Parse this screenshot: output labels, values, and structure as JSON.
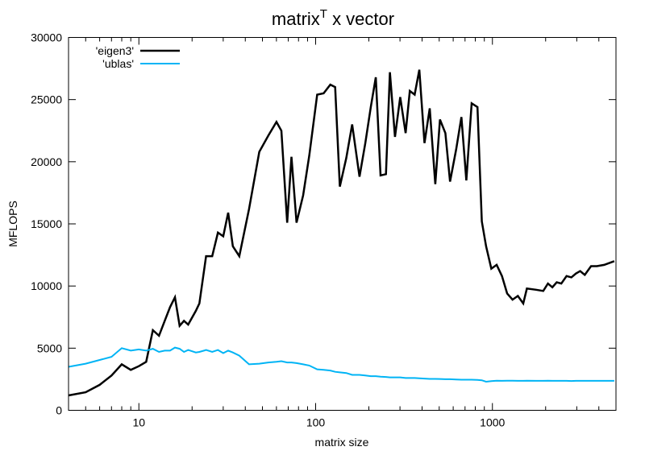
{
  "chart_data": {
    "type": "line",
    "title": "matrix",
    "title_superscript": "T",
    "title_suffix": " x vector",
    "xlabel": "matrix size",
    "ylabel": "MFLOPS",
    "x_scale": "log",
    "xlim": [
      4,
      5000
    ],
    "ylim": [
      0,
      30000
    ],
    "x_ticks": [
      10,
      100,
      1000
    ],
    "x_tick_labels": [
      "10",
      "100",
      "1000"
    ],
    "y_ticks": [
      0,
      5000,
      10000,
      15000,
      20000,
      25000,
      30000
    ],
    "y_tick_labels": [
      "0",
      "5000",
      "10000",
      "15000",
      "20000",
      "25000",
      "30000"
    ],
    "grid": false,
    "legend_position": "top-left",
    "series": [
      {
        "name": "'eigen3'",
        "color": "#000000",
        "points": [
          [
            4,
            1200
          ],
          [
            5,
            1450
          ],
          [
            6,
            2050
          ],
          [
            7,
            2800
          ],
          [
            8,
            3700
          ],
          [
            9,
            3250
          ],
          [
            10,
            3550
          ],
          [
            11,
            3900
          ],
          [
            12,
            6450
          ],
          [
            13,
            6000
          ],
          [
            14,
            7200
          ],
          [
            15,
            8300
          ],
          [
            16,
            9100
          ],
          [
            17,
            6800
          ],
          [
            18,
            7200
          ],
          [
            19,
            6900
          ],
          [
            21,
            8000
          ],
          [
            22,
            8600
          ],
          [
            24,
            12400
          ],
          [
            26,
            12400
          ],
          [
            28,
            14300
          ],
          [
            30,
            14000
          ],
          [
            32,
            15900
          ],
          [
            34,
            13200
          ],
          [
            37,
            12400
          ],
          [
            42,
            16200
          ],
          [
            48,
            20800
          ],
          [
            54,
            22100
          ],
          [
            60,
            23200
          ],
          [
            64,
            22500
          ],
          [
            69,
            15100
          ],
          [
            73,
            20400
          ],
          [
            78,
            15100
          ],
          [
            85,
            17300
          ],
          [
            92,
            20500
          ],
          [
            102,
            25400
          ],
          [
            111,
            25500
          ],
          [
            121,
            26200
          ],
          [
            129,
            26000
          ],
          [
            137,
            18000
          ],
          [
            149,
            20300
          ],
          [
            161,
            23000
          ],
          [
            177,
            18800
          ],
          [
            191,
            21500
          ],
          [
            205,
            24400
          ],
          [
            219,
            26800
          ],
          [
            233,
            18900
          ],
          [
            250,
            19000
          ],
          [
            263,
            27200
          ],
          [
            281,
            22000
          ],
          [
            301,
            25200
          ],
          [
            323,
            22300
          ],
          [
            341,
            25700
          ],
          [
            363,
            25400
          ],
          [
            386,
            27400
          ],
          [
            413,
            21500
          ],
          [
            442,
            24300
          ],
          [
            475,
            18200
          ],
          [
            505,
            23400
          ],
          [
            542,
            22300
          ],
          [
            576,
            18400
          ],
          [
            624,
            21000
          ],
          [
            668,
            23600
          ],
          [
            712,
            18500
          ],
          [
            763,
            24700
          ],
          [
            823,
            24400
          ],
          [
            871,
            15200
          ],
          [
            921,
            13200
          ],
          [
            986,
            11400
          ],
          [
            1057,
            11700
          ],
          [
            1133,
            10800
          ],
          [
            1211,
            9400
          ],
          [
            1299,
            8900
          ],
          [
            1393,
            9200
          ],
          [
            1495,
            8600
          ],
          [
            1566,
            9800
          ],
          [
            1766,
            9700
          ],
          [
            1939,
            9600
          ],
          [
            2061,
            10200
          ],
          [
            2183,
            9900
          ],
          [
            2311,
            10300
          ],
          [
            2454,
            10200
          ],
          [
            2627,
            10800
          ],
          [
            2796,
            10700
          ],
          [
            2966,
            11000
          ],
          [
            3135,
            11200
          ],
          [
            3330,
            10900
          ],
          [
            3616,
            11600
          ],
          [
            3900,
            11600
          ],
          [
            4291,
            11700
          ],
          [
            4890,
            12000
          ]
        ]
      },
      {
        "name": "'ublas'",
        "color": "#00b4f5",
        "points": [
          [
            4,
            3500
          ],
          [
            5,
            3750
          ],
          [
            6,
            4050
          ],
          [
            7,
            4300
          ],
          [
            8,
            5000
          ],
          [
            9,
            4800
          ],
          [
            10,
            4900
          ],
          [
            11,
            4800
          ],
          [
            12,
            4950
          ],
          [
            13,
            4700
          ],
          [
            14,
            4800
          ],
          [
            15,
            4800
          ],
          [
            16,
            5050
          ],
          [
            17,
            4950
          ],
          [
            18,
            4700
          ],
          [
            19,
            4850
          ],
          [
            21,
            4650
          ],
          [
            22,
            4700
          ],
          [
            24,
            4850
          ],
          [
            26,
            4700
          ],
          [
            28,
            4850
          ],
          [
            30,
            4600
          ],
          [
            32,
            4800
          ],
          [
            34,
            4650
          ],
          [
            37,
            4400
          ],
          [
            42,
            3700
          ],
          [
            48,
            3750
          ],
          [
            54,
            3850
          ],
          [
            60,
            3900
          ],
          [
            64,
            3950
          ],
          [
            69,
            3850
          ],
          [
            73,
            3850
          ],
          [
            78,
            3800
          ],
          [
            85,
            3700
          ],
          [
            92,
            3600
          ],
          [
            102,
            3300
          ],
          [
            111,
            3250
          ],
          [
            121,
            3200
          ],
          [
            129,
            3100
          ],
          [
            137,
            3050
          ],
          [
            149,
            3000
          ],
          [
            161,
            2850
          ],
          [
            177,
            2850
          ],
          [
            191,
            2800
          ],
          [
            205,
            2750
          ],
          [
            219,
            2750
          ],
          [
            233,
            2700
          ],
          [
            250,
            2680
          ],
          [
            263,
            2650
          ],
          [
            281,
            2650
          ],
          [
            301,
            2650
          ],
          [
            323,
            2600
          ],
          [
            341,
            2600
          ],
          [
            363,
            2600
          ],
          [
            386,
            2580
          ],
          [
            413,
            2550
          ],
          [
            442,
            2530
          ],
          [
            475,
            2530
          ],
          [
            505,
            2520
          ],
          [
            542,
            2500
          ],
          [
            576,
            2500
          ],
          [
            624,
            2480
          ],
          [
            668,
            2460
          ],
          [
            712,
            2460
          ],
          [
            763,
            2460
          ],
          [
            823,
            2440
          ],
          [
            871,
            2420
          ],
          [
            921,
            2300
          ],
          [
            986,
            2350
          ],
          [
            1057,
            2380
          ],
          [
            1133,
            2370
          ],
          [
            1211,
            2380
          ],
          [
            1299,
            2380
          ],
          [
            1393,
            2370
          ],
          [
            1495,
            2370
          ],
          [
            1566,
            2380
          ],
          [
            1766,
            2370
          ],
          [
            1939,
            2370
          ],
          [
            2061,
            2380
          ],
          [
            2183,
            2370
          ],
          [
            2311,
            2370
          ],
          [
            2454,
            2370
          ],
          [
            2627,
            2370
          ],
          [
            2796,
            2360
          ],
          [
            2966,
            2370
          ],
          [
            3135,
            2370
          ],
          [
            3330,
            2370
          ],
          [
            3616,
            2370
          ],
          [
            3900,
            2370
          ],
          [
            4291,
            2370
          ],
          [
            4890,
            2370
          ]
        ]
      }
    ]
  }
}
